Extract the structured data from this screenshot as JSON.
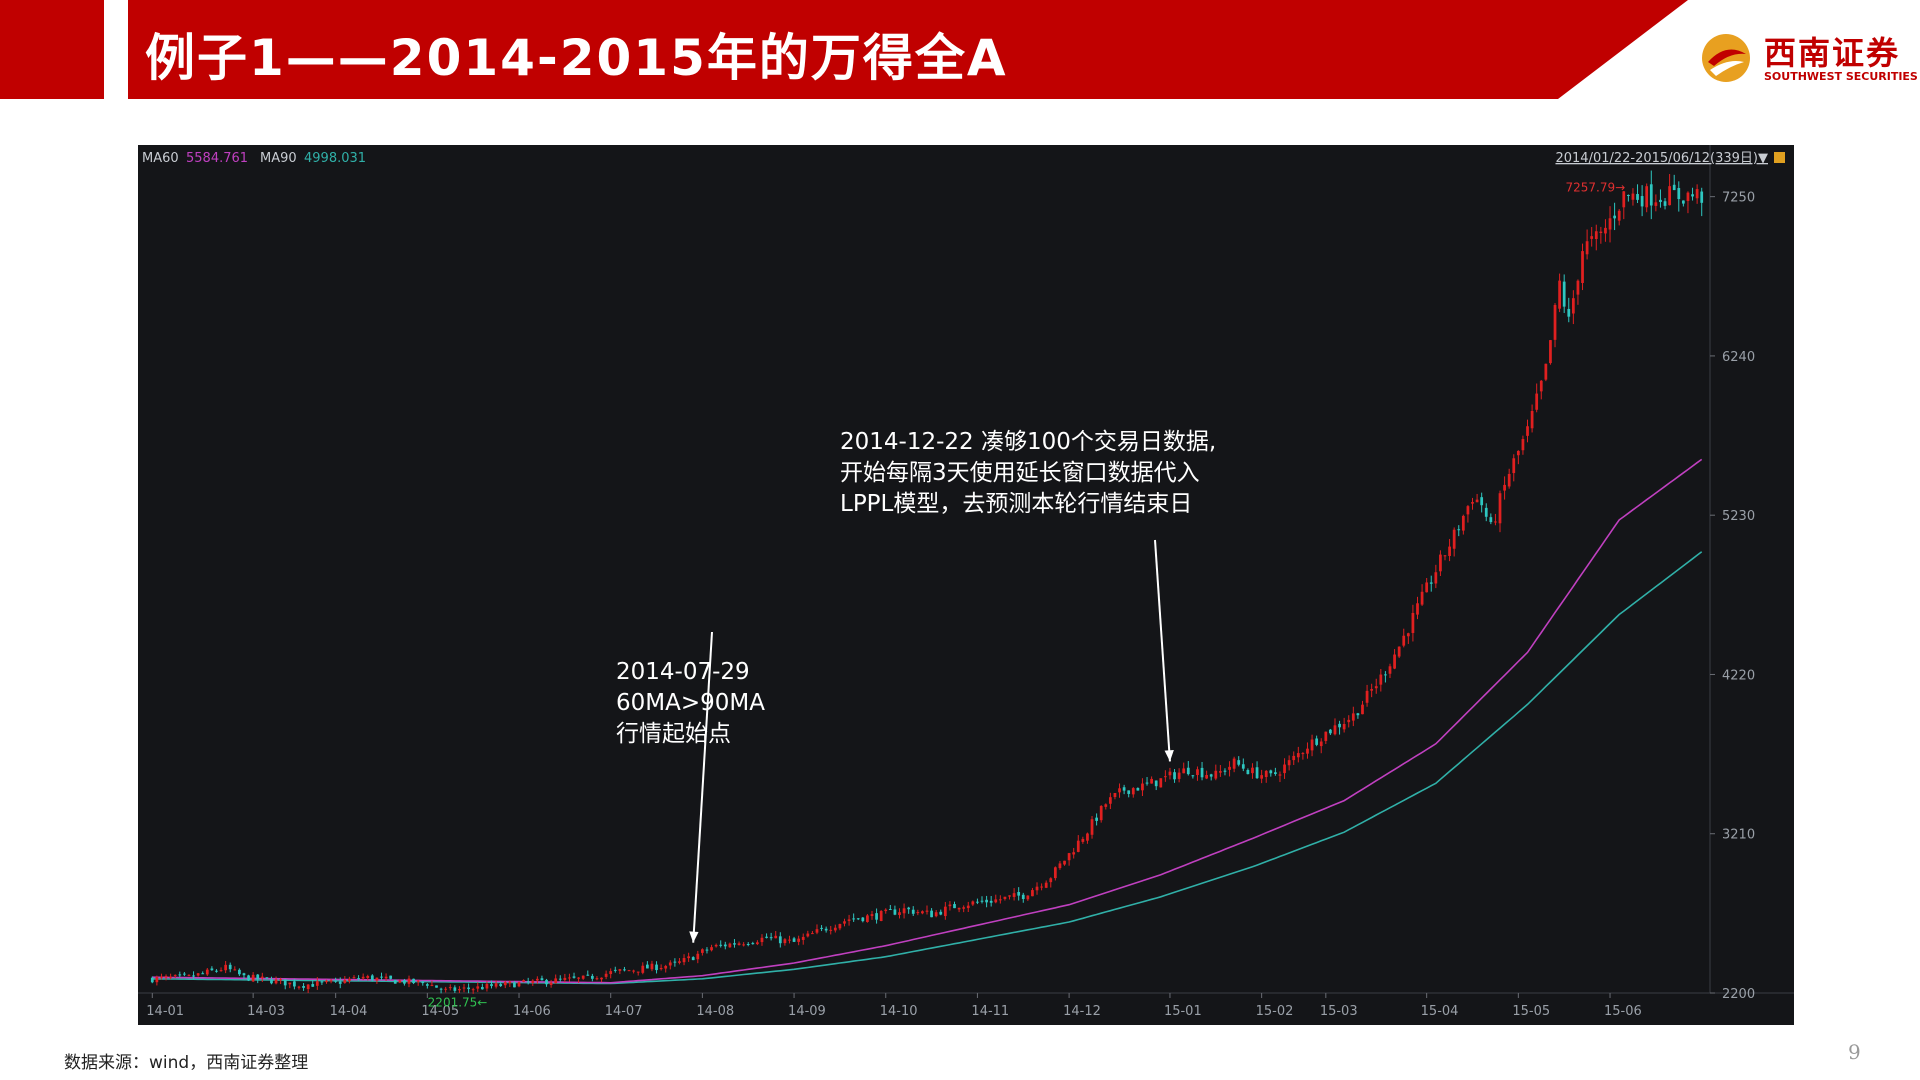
{
  "header": {
    "title": "例子1——2014-2015年的万得全A"
  },
  "logo": {
    "name_cn": "西南证券",
    "name_en": "SOUTHWEST SECURITIES"
  },
  "chart_data": {
    "type": "candlestick",
    "legend": [
      {
        "name": "MA60",
        "value": "5584.761",
        "color": "#c040c0"
      },
      {
        "name": "MA90",
        "value": "4998.031",
        "color": "#30b0a8"
      }
    ],
    "date_range_label": "2014/01/22-2015/06/12(339日)",
    "ylim": [
      2200,
      7400
    ],
    "yticks": [
      2200,
      3210,
      4220,
      5230,
      6240,
      7250
    ],
    "x_ticks": [
      "14-01",
      "14-03",
      "14-04",
      "14-05",
      "14-06",
      "14-07",
      "14-08",
      "14-09",
      "14-10",
      "14-11",
      "14-12",
      "15-01",
      "15-02",
      "15-03",
      "15-04",
      "15-05",
      "15-06"
    ],
    "x_tick_idx": [
      0,
      22,
      40,
      60,
      80,
      100,
      120,
      140,
      160,
      180,
      200,
      222,
      242,
      256,
      278,
      298,
      318
    ],
    "n_days": 339,
    "close_anchors": [
      [
        0,
        2290
      ],
      [
        8,
        2300
      ],
      [
        12,
        2330
      ],
      [
        16,
        2360
      ],
      [
        20,
        2300
      ],
      [
        26,
        2280
      ],
      [
        32,
        2250
      ],
      [
        40,
        2265
      ],
      [
        46,
        2300
      ],
      [
        52,
        2280
      ],
      [
        60,
        2260
      ],
      [
        64,
        2215
      ],
      [
        70,
        2230
      ],
      [
        78,
        2255
      ],
      [
        86,
        2275
      ],
      [
        94,
        2290
      ],
      [
        100,
        2330
      ],
      [
        108,
        2360
      ],
      [
        114,
        2380
      ],
      [
        118,
        2430
      ],
      [
        122,
        2490
      ],
      [
        128,
        2520
      ],
      [
        134,
        2550
      ],
      [
        140,
        2520
      ],
      [
        146,
        2600
      ],
      [
        152,
        2670
      ],
      [
        158,
        2690
      ],
      [
        164,
        2730
      ],
      [
        170,
        2700
      ],
      [
        176,
        2760
      ],
      [
        184,
        2790
      ],
      [
        190,
        2820
      ],
      [
        196,
        2940
      ],
      [
        200,
        3080
      ],
      [
        204,
        3230
      ],
      [
        208,
        3400
      ],
      [
        212,
        3490
      ],
      [
        216,
        3510
      ],
      [
        220,
        3550
      ],
      [
        226,
        3620
      ],
      [
        232,
        3580
      ],
      [
        236,
        3660
      ],
      [
        240,
        3600
      ],
      [
        244,
        3570
      ],
      [
        248,
        3660
      ],
      [
        252,
        3770
      ],
      [
        256,
        3850
      ],
      [
        262,
        3960
      ],
      [
        268,
        4200
      ],
      [
        272,
        4400
      ],
      [
        276,
        4640
      ],
      [
        280,
        4880
      ],
      [
        284,
        5100
      ],
      [
        288,
        5350
      ],
      [
        290,
        5300
      ],
      [
        292,
        5140
      ],
      [
        296,
        5500
      ],
      [
        300,
        5760
      ],
      [
        304,
        6150
      ],
      [
        307,
        6700
      ],
      [
        309,
        6450
      ],
      [
        312,
        6920
      ],
      [
        316,
        7000
      ],
      [
        318,
        7100
      ],
      [
        321,
        7257
      ],
      [
        324,
        7257
      ]
    ],
    "ma60_anchors": [
      [
        0,
        2300
      ],
      [
        100,
        2265
      ],
      [
        120,
        2310
      ],
      [
        140,
        2390
      ],
      [
        160,
        2500
      ],
      [
        180,
        2630
      ],
      [
        200,
        2760
      ],
      [
        220,
        2950
      ],
      [
        240,
        3180
      ],
      [
        260,
        3420
      ],
      [
        280,
        3780
      ],
      [
        300,
        4360
      ],
      [
        320,
        5200
      ],
      [
        338,
        5584
      ]
    ],
    "ma90_anchors": [
      [
        0,
        2290
      ],
      [
        100,
        2260
      ],
      [
        120,
        2290
      ],
      [
        140,
        2350
      ],
      [
        160,
        2430
      ],
      [
        180,
        2540
      ],
      [
        200,
        2650
      ],
      [
        220,
        2810
      ],
      [
        240,
        3000
      ],
      [
        260,
        3220
      ],
      [
        280,
        3530
      ],
      [
        300,
        4030
      ],
      [
        320,
        4600
      ],
      [
        338,
        4998
      ]
    ],
    "high_label": "7257.79",
    "low_label": "2201.75",
    "low_idx": 64,
    "annotations": [
      {
        "text": "2014-07-29\n60MA>90MA\n行情起始点",
        "idx": 118,
        "y": 2430
      },
      {
        "text": "2014-12-22 凑够100个交易日数据,\n开始每隔3天使用延长窗口数据代入\nLPPL模型，去预测本轮行情结束日",
        "idx": 222,
        "y": 3580
      }
    ],
    "up_color": "#e02020",
    "down_color": "#2ec6c0"
  },
  "footer": {
    "source": "数据来源：wind，西南证券整理",
    "page_number": "9"
  }
}
